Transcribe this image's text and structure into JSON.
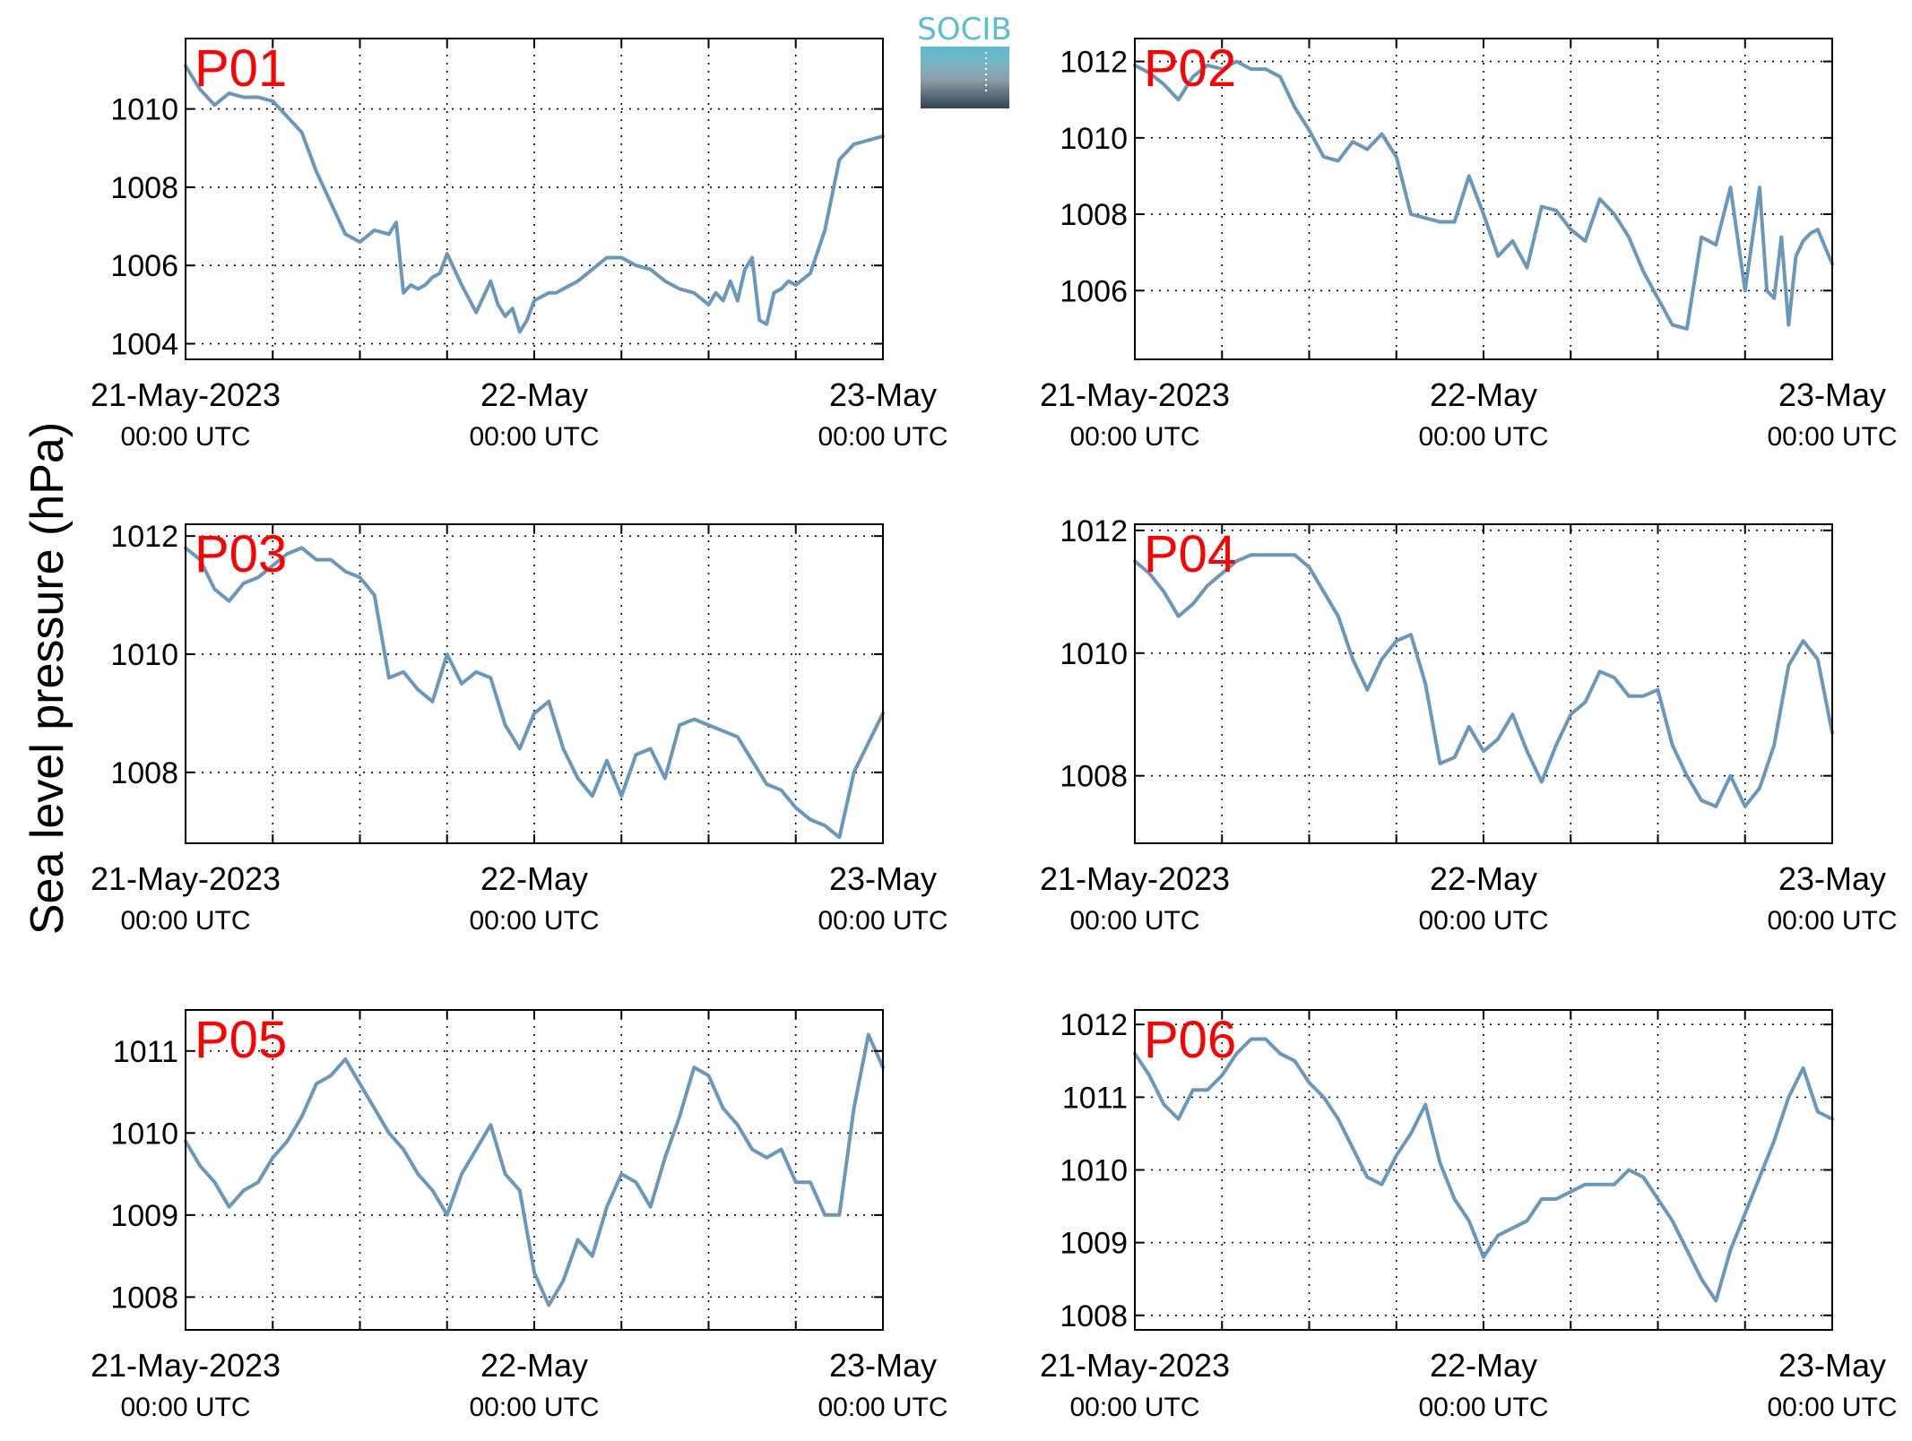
{
  "logo": {
    "text": "SOCIB"
  },
  "ylabel": "Sea level pressure (hPa)",
  "colors": {
    "line": "#6a97ba",
    "panel_label": "#ff0000",
    "logo_accent": "#5bbcd0"
  },
  "chart_data": [
    {
      "type": "line",
      "label": "P01",
      "x_ticks": [
        {
          "line1": "21-May-2023",
          "line2": "00:00 UTC"
        },
        {
          "line1": "22-May",
          "line2": "00:00 UTC"
        },
        {
          "line1": "23-May",
          "line2": "00:00 UTC"
        }
      ],
      "xlim": [
        0,
        48
      ],
      "ylim": [
        1003.6,
        1011.8
      ],
      "yticks": [
        1004,
        1006,
        1008,
        1010
      ],
      "grid": true,
      "x": [
        0,
        0.5,
        1,
        2,
        3,
        4,
        5,
        6,
        7,
        8,
        9,
        10,
        11,
        12,
        13,
        14,
        14.5,
        15,
        15.5,
        16,
        16.5,
        17,
        17.5,
        18,
        19,
        20,
        21,
        21.5,
        22,
        22.5,
        23,
        23.5,
        24,
        24.5,
        25,
        25.5,
        26,
        27,
        28,
        29,
        30,
        31,
        32,
        33,
        34,
        35,
        36,
        36.5,
        37,
        37.5,
        38,
        38.5,
        39,
        39.5,
        40,
        40.5,
        41,
        41.5,
        42,
        43,
        44,
        45,
        46,
        47,
        48
      ],
      "values": [
        1011.1,
        1010.8,
        1010.5,
        1010.1,
        1010.4,
        1010.3,
        1010.3,
        1010.2,
        1009.8,
        1009.4,
        1008.4,
        1007.6,
        1006.8,
        1006.6,
        1006.9,
        1006.8,
        1007.1,
        1005.3,
        1005.5,
        1005.4,
        1005.5,
        1005.7,
        1005.8,
        1006.3,
        1005.5,
        1004.8,
        1005.6,
        1005.0,
        1004.7,
        1004.9,
        1004.3,
        1004.6,
        1005.1,
        1005.2,
        1005.3,
        1005.3,
        1005.4,
        1005.6,
        1005.9,
        1006.2,
        1006.2,
        1006.0,
        1005.9,
        1005.6,
        1005.4,
        1005.3,
        1005.0,
        1005.3,
        1005.1,
        1005.6,
        1005.1,
        1005.9,
        1006.2,
        1004.6,
        1004.5,
        1005.3,
        1005.4,
        1005.6,
        1005.5,
        1005.8,
        1006.9,
        1008.7,
        1009.1,
        1009.2,
        1009.3
      ]
    },
    {
      "type": "line",
      "label": "P02",
      "x_ticks": [
        {
          "line1": "21-May-2023",
          "line2": "00:00 UTC"
        },
        {
          "line1": "22-May",
          "line2": "00:00 UTC"
        },
        {
          "line1": "23-May",
          "line2": "00:00 UTC"
        }
      ],
      "xlim": [
        0,
        48
      ],
      "ylim": [
        1004.2,
        1012.6
      ],
      "yticks": [
        1006,
        1008,
        1010,
        1012
      ],
      "grid": true,
      "x": [
        0,
        1,
        2,
        3,
        4,
        5,
        6,
        7,
        8,
        9,
        10,
        11,
        12,
        13,
        14,
        15,
        16,
        17,
        18,
        19,
        20,
        21,
        22,
        23,
        24,
        25,
        26,
        27,
        28,
        29,
        30,
        31,
        32,
        33,
        34,
        35,
        36,
        37,
        38,
        39,
        40,
        41,
        42,
        43,
        43.5,
        44,
        44.5,
        45,
        45.5,
        46,
        46.5,
        47,
        48
      ],
      "values": [
        1011.9,
        1011.7,
        1011.4,
        1011.0,
        1011.6,
        1011.9,
        1011.8,
        1012.0,
        1011.8,
        1011.8,
        1011.6,
        1010.8,
        1010.2,
        1009.5,
        1009.4,
        1009.9,
        1009.7,
        1010.1,
        1009.5,
        1008.0,
        1007.9,
        1007.8,
        1007.8,
        1009.0,
        1008.0,
        1006.9,
        1007.3,
        1006.6,
        1008.2,
        1008.1,
        1007.6,
        1007.3,
        1008.4,
        1008.0,
        1007.4,
        1006.5,
        1005.8,
        1005.1,
        1005.0,
        1007.4,
        1007.2,
        1008.7,
        1006.0,
        1008.7,
        1006.0,
        1005.8,
        1007.4,
        1005.1,
        1006.9,
        1007.3,
        1007.5,
        1007.6,
        1006.7
      ]
    },
    {
      "type": "line",
      "label": "P03",
      "x_ticks": [
        {
          "line1": "21-May-2023",
          "line2": "00:00 UTC"
        },
        {
          "line1": "22-May",
          "line2": "00:00 UTC"
        },
        {
          "line1": "23-May",
          "line2": "00:00 UTC"
        }
      ],
      "xlim": [
        0,
        48
      ],
      "ylim": [
        1006.8,
        1012.2
      ],
      "yticks": [
        1008,
        1010,
        1012
      ],
      "grid": true,
      "x": [
        0,
        1,
        2,
        3,
        4,
        5,
        6,
        7,
        8,
        9,
        10,
        11,
        12,
        13,
        14,
        15,
        16,
        17,
        18,
        19,
        20,
        21,
        22,
        23,
        24,
        25,
        26,
        27,
        28,
        29,
        30,
        31,
        32,
        33,
        34,
        35,
        36,
        37,
        38,
        39,
        40,
        41,
        42,
        43,
        44,
        45,
        46,
        47,
        48
      ],
      "values": [
        1011.8,
        1011.6,
        1011.1,
        1010.9,
        1011.2,
        1011.3,
        1011.5,
        1011.7,
        1011.8,
        1011.6,
        1011.6,
        1011.4,
        1011.3,
        1011.0,
        1009.6,
        1009.7,
        1009.4,
        1009.2,
        1010.0,
        1009.5,
        1009.7,
        1009.6,
        1008.8,
        1008.4,
        1009.0,
        1009.2,
        1008.4,
        1007.9,
        1007.6,
        1008.2,
        1007.6,
        1008.3,
        1008.4,
        1007.9,
        1008.8,
        1008.9,
        1008.8,
        1008.7,
        1008.6,
        1008.2,
        1007.8,
        1007.7,
        1007.4,
        1007.2,
        1007.1,
        1006.9,
        1008.0,
        1008.5,
        1009.0
      ]
    },
    {
      "type": "line",
      "label": "P04",
      "x_ticks": [
        {
          "line1": "21-May-2023",
          "line2": "00:00 UTC"
        },
        {
          "line1": "22-May",
          "line2": "00:00 UTC"
        },
        {
          "line1": "23-May",
          "line2": "00:00 UTC"
        }
      ],
      "xlim": [
        0,
        48
      ],
      "ylim": [
        1006.9,
        1012.1
      ],
      "yticks": [
        1008,
        1010,
        1012
      ],
      "grid": true,
      "x": [
        0,
        1,
        2,
        3,
        4,
        5,
        6,
        7,
        8,
        9,
        10,
        11,
        12,
        13,
        14,
        15,
        16,
        17,
        18,
        19,
        20,
        21,
        22,
        23,
        24,
        25,
        26,
        27,
        28,
        29,
        30,
        31,
        32,
        33,
        34,
        35,
        36,
        37,
        38,
        39,
        40,
        41,
        42,
        43,
        44,
        45,
        46,
        47,
        48
      ],
      "values": [
        1011.5,
        1011.3,
        1011.0,
        1010.6,
        1010.8,
        1011.1,
        1011.3,
        1011.5,
        1011.6,
        1011.6,
        1011.6,
        1011.6,
        1011.4,
        1011.0,
        1010.6,
        1009.9,
        1009.4,
        1009.9,
        1010.2,
        1010.3,
        1009.5,
        1008.2,
        1008.3,
        1008.8,
        1008.4,
        1008.6,
        1009.0,
        1008.4,
        1007.9,
        1008.5,
        1009.0,
        1009.2,
        1009.7,
        1009.6,
        1009.3,
        1009.3,
        1009.4,
        1008.5,
        1008.0,
        1007.6,
        1007.5,
        1008.0,
        1007.5,
        1007.8,
        1008.5,
        1009.8,
        1010.2,
        1009.9,
        1008.7
      ]
    },
    {
      "type": "line",
      "label": "P05",
      "x_ticks": [
        {
          "line1": "21-May-2023",
          "line2": "00:00 UTC"
        },
        {
          "line1": "22-May",
          "line2": "00:00 UTC"
        },
        {
          "line1": "23-May",
          "line2": "00:00 UTC"
        }
      ],
      "xlim": [
        0,
        48
      ],
      "ylim": [
        1007.6,
        1011.5
      ],
      "yticks": [
        1008,
        1009,
        1010,
        1011
      ],
      "grid": true,
      "x": [
        0,
        1,
        2,
        3,
        4,
        5,
        6,
        7,
        8,
        9,
        10,
        11,
        12,
        13,
        14,
        15,
        16,
        17,
        18,
        19,
        20,
        21,
        22,
        23,
        24,
        25,
        26,
        27,
        28,
        29,
        30,
        31,
        32,
        33,
        34,
        35,
        36,
        37,
        38,
        39,
        40,
        41,
        42,
        43,
        44,
        45,
        46,
        47,
        48
      ],
      "values": [
        1009.9,
        1009.6,
        1009.4,
        1009.1,
        1009.3,
        1009.4,
        1009.7,
        1009.9,
        1010.2,
        1010.6,
        1010.7,
        1010.9,
        1010.6,
        1010.3,
        1010.0,
        1009.8,
        1009.5,
        1009.3,
        1009.0,
        1009.5,
        1009.8,
        1010.1,
        1009.5,
        1009.3,
        1008.3,
        1007.9,
        1008.2,
        1008.7,
        1008.5,
        1009.1,
        1009.5,
        1009.4,
        1009.1,
        1009.7,
        1010.2,
        1010.8,
        1010.7,
        1010.3,
        1010.1,
        1009.8,
        1009.7,
        1009.8,
        1009.4,
        1009.4,
        1009.0,
        1009.0,
        1010.3,
        1011.2,
        1010.8
      ]
    },
    {
      "type": "line",
      "label": "P06",
      "x_ticks": [
        {
          "line1": "21-May-2023",
          "line2": "00:00 UTC"
        },
        {
          "line1": "22-May",
          "line2": "00:00 UTC"
        },
        {
          "line1": "23-May",
          "line2": "00:00 UTC"
        }
      ],
      "xlim": [
        0,
        48
      ],
      "ylim": [
        1007.8,
        1012.2
      ],
      "yticks": [
        1008,
        1009,
        1010,
        1011,
        1012
      ],
      "grid": true,
      "x": [
        0,
        1,
        2,
        3,
        4,
        5,
        6,
        7,
        8,
        9,
        10,
        11,
        12,
        13,
        14,
        15,
        16,
        17,
        18,
        19,
        20,
        21,
        22,
        23,
        24,
        25,
        26,
        27,
        28,
        29,
        30,
        31,
        32,
        33,
        34,
        35,
        36,
        37,
        38,
        39,
        40,
        41,
        42,
        43,
        44,
        45,
        46,
        47,
        48
      ],
      "values": [
        1011.6,
        1011.3,
        1010.9,
        1010.7,
        1011.1,
        1011.1,
        1011.3,
        1011.6,
        1011.8,
        1011.8,
        1011.6,
        1011.5,
        1011.2,
        1011.0,
        1010.7,
        1010.3,
        1009.9,
        1009.8,
        1010.2,
        1010.5,
        1010.9,
        1010.1,
        1009.6,
        1009.3,
        1008.8,
        1009.1,
        1009.2,
        1009.3,
        1009.6,
        1009.6,
        1009.7,
        1009.8,
        1009.8,
        1009.8,
        1010.0,
        1009.9,
        1009.6,
        1009.3,
        1008.9,
        1008.5,
        1008.2,
        1008.9,
        1009.4,
        1009.9,
        1010.4,
        1011.0,
        1011.4,
        1010.8,
        1010.7
      ]
    }
  ]
}
